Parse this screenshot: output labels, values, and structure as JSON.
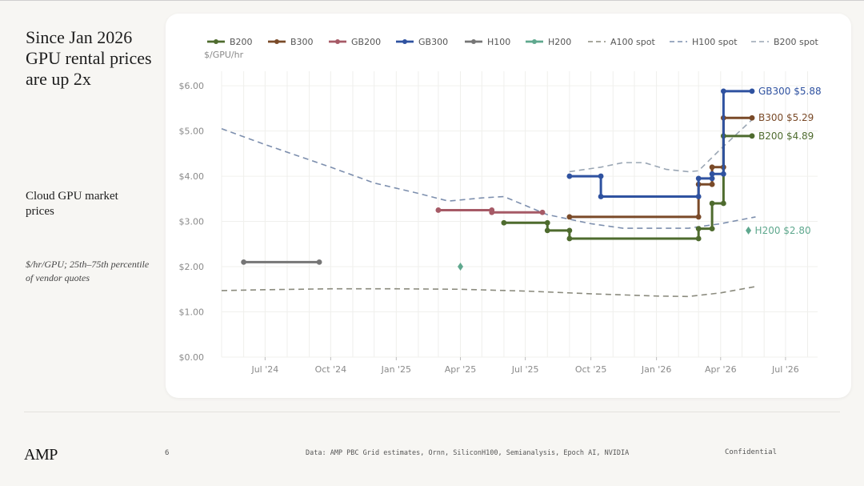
{
  "slide": {
    "headline": "Since Jan 2026 GPU rental prices are up 2x",
    "subhead": "Cloud GPU market prices",
    "note": "$/hr/GPU; 25th–75th percentile of vendor quotes",
    "logo": "AMP",
    "page_number": "6",
    "source": "Data: AMP PBC Grid estimates, Ornn, SiliconH100, Semianalysis, Epoch AI, NVIDIA",
    "confidential": "Confidential"
  },
  "chart_data": {
    "type": "line",
    "ylabel": "$/GPU/hr",
    "xlabel": "",
    "xlim": [
      "2024-05-01",
      "2026-08-15"
    ],
    "ylim": [
      0,
      6.25
    ],
    "x_ticks": [
      {
        "date": "2024-07-01",
        "label": "Jul '24"
      },
      {
        "date": "2024-10-01",
        "label": "Oct '24"
      },
      {
        "date": "2025-01-01",
        "label": "Jan '25"
      },
      {
        "date": "2025-04-01",
        "label": "Apr '25"
      },
      {
        "date": "2025-07-01",
        "label": "Jul '25"
      },
      {
        "date": "2025-10-01",
        "label": "Oct '25"
      },
      {
        "date": "2026-01-01",
        "label": "Jan '26"
      },
      {
        "date": "2026-04-01",
        "label": "Apr '26"
      },
      {
        "date": "2026-07-01",
        "label": "Jul '26"
      }
    ],
    "y_ticks": [
      {
        "value": 0,
        "label": "$0.00"
      },
      {
        "value": 1,
        "label": "$1.00"
      },
      {
        "value": 2,
        "label": "$2.00"
      },
      {
        "value": 3,
        "label": "$3.00"
      },
      {
        "value": 4,
        "label": "$4.00"
      },
      {
        "value": 5,
        "label": "$5.00"
      },
      {
        "value": 6,
        "label": "$6.00"
      }
    ],
    "grid": true,
    "legend_position": "top",
    "series": [
      {
        "name": "B200",
        "style": "step",
        "color": "#4e6b2e",
        "label": "B200 $4.89",
        "points": [
          [
            "2025-06-01",
            2.97
          ],
          [
            "2025-08-01",
            2.97
          ],
          [
            "2025-08-01",
            2.8
          ],
          [
            "2025-09-01",
            2.8
          ],
          [
            "2025-09-01",
            2.62
          ],
          [
            "2026-03-01",
            2.62
          ],
          [
            "2026-03-01",
            2.84
          ],
          [
            "2026-03-20",
            2.84
          ],
          [
            "2026-03-20",
            3.4
          ],
          [
            "2026-04-05",
            3.4
          ],
          [
            "2026-04-05",
            4.89
          ],
          [
            "2026-05-15",
            4.89
          ]
        ]
      },
      {
        "name": "B300",
        "style": "step",
        "color": "#7a4a28",
        "label": "B300 $5.29",
        "points": [
          [
            "2025-09-01",
            3.1
          ],
          [
            "2026-03-01",
            3.1
          ],
          [
            "2026-03-01",
            3.82
          ],
          [
            "2026-03-20",
            3.82
          ],
          [
            "2026-03-20",
            4.2
          ],
          [
            "2026-04-05",
            4.2
          ],
          [
            "2026-04-05",
            5.29
          ],
          [
            "2026-05-15",
            5.29
          ]
        ]
      },
      {
        "name": "GB200",
        "style": "step",
        "color": "#a65a66",
        "label": "",
        "points": [
          [
            "2025-03-01",
            3.25
          ],
          [
            "2025-05-15",
            3.25
          ],
          [
            "2025-05-15",
            3.2
          ],
          [
            "2025-07-25",
            3.2
          ]
        ]
      },
      {
        "name": "GB300",
        "style": "step",
        "color": "#2f52a0",
        "label": "GB300 $5.88",
        "points": [
          [
            "2025-09-01",
            4.0
          ],
          [
            "2025-10-15",
            4.0
          ],
          [
            "2025-10-15",
            3.55
          ],
          [
            "2026-03-01",
            3.55
          ],
          [
            "2026-03-01",
            3.95
          ],
          [
            "2026-03-20",
            3.95
          ],
          [
            "2026-03-20",
            4.05
          ],
          [
            "2026-04-05",
            4.05
          ],
          [
            "2026-04-05",
            5.88
          ],
          [
            "2026-05-15",
            5.88
          ]
        ]
      },
      {
        "name": "H100",
        "style": "step",
        "color": "#767676",
        "label": "",
        "points": [
          [
            "2024-06-01",
            2.1
          ],
          [
            "2024-09-15",
            2.1
          ]
        ]
      },
      {
        "name": "H200",
        "style": "point",
        "color": "#5fa88e",
        "label": "H200 $2.80",
        "points": [
          [
            "2025-04-01",
            2.0
          ],
          [
            "2026-05-10",
            2.8
          ]
        ]
      },
      {
        "name": "A100 spot",
        "style": "dashed",
        "color": "#8b8b7e",
        "label": "",
        "points": [
          [
            "2024-05-01",
            1.47
          ],
          [
            "2024-07-01",
            1.49
          ],
          [
            "2024-10-01",
            1.51
          ],
          [
            "2025-01-01",
            1.51
          ],
          [
            "2025-04-01",
            1.5
          ],
          [
            "2025-07-01",
            1.46
          ],
          [
            "2025-10-01",
            1.4
          ],
          [
            "2026-01-01",
            1.35
          ],
          [
            "2026-02-15",
            1.34
          ],
          [
            "2026-04-01",
            1.42
          ],
          [
            "2026-05-20",
            1.56
          ]
        ]
      },
      {
        "name": "H100 spot",
        "style": "dashed",
        "color": "#7d8fae",
        "label": "",
        "points": [
          [
            "2024-05-01",
            5.05
          ],
          [
            "2024-07-01",
            4.7
          ],
          [
            "2024-10-01",
            4.2
          ],
          [
            "2024-12-01",
            3.85
          ],
          [
            "2025-02-01",
            3.62
          ],
          [
            "2025-03-15",
            3.45
          ],
          [
            "2025-05-01",
            3.52
          ],
          [
            "2025-06-01",
            3.55
          ],
          [
            "2025-08-01",
            3.15
          ],
          [
            "2025-10-01",
            2.95
          ],
          [
            "2025-11-15",
            2.85
          ],
          [
            "2026-01-01",
            2.85
          ],
          [
            "2026-02-15",
            2.85
          ],
          [
            "2026-04-01",
            2.95
          ],
          [
            "2026-05-20",
            3.1
          ]
        ]
      },
      {
        "name": "B200 spot",
        "style": "dashed",
        "color": "#9aa6b4",
        "label": "",
        "points": [
          [
            "2025-09-01",
            4.1
          ],
          [
            "2025-10-15",
            4.2
          ],
          [
            "2025-11-15",
            4.3
          ],
          [
            "2025-12-15",
            4.3
          ],
          [
            "2026-01-15",
            4.15
          ],
          [
            "2026-02-15",
            4.1
          ],
          [
            "2026-03-01",
            4.12
          ],
          [
            "2026-04-01",
            4.6
          ],
          [
            "2026-05-15",
            5.25
          ]
        ]
      }
    ]
  }
}
